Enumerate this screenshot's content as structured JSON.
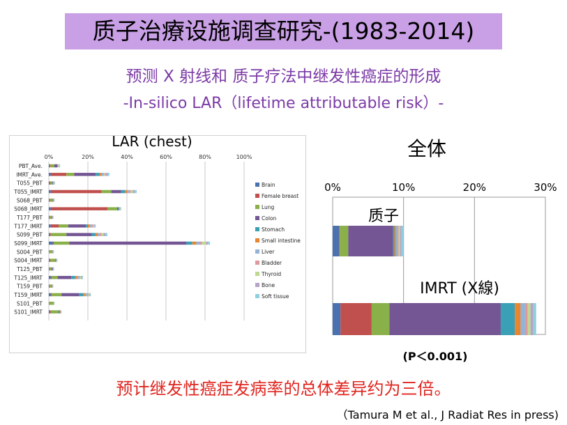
{
  "title": "质子治療设施调查研究-(1983-2014)",
  "subtitle1": "预测 X 射线和 质子疗法中继发性癌症的形成",
  "subtitle2": "-In-silico LAR（lifetime attributable risk）-",
  "conclusion": "预计继发性癌症发病率的总体差异约为三倍。",
  "citation": "（Tamura M et al., J Radiat Res in press)",
  "colors": {
    "Brain": "#4a72b0",
    "Female breast": "#c0504d",
    "Lung": "#8ab04a",
    "Colon": "#735693",
    "Stomach": "#3aa0b5",
    "Small intestine": "#e8852e",
    "Liver": "#95b2d8",
    "Bladder": "#de9a9a",
    "Thyroid": "#bfd890",
    "Bone": "#b4a4c8",
    "Soft tissue": "#8ed0e0"
  },
  "chart_data": [
    {
      "type": "bar",
      "orientation": "horizontal",
      "stacked": true,
      "title": "LAR (chest)",
      "xlim": [
        0,
        100
      ],
      "x_ticks": [
        "0%",
        "20%",
        "40%",
        "60%",
        "80%",
        "100%"
      ],
      "categories": [
        "PBT_Ave.",
        "IMRT_Ave.",
        "T055_PBT",
        "T055_IMRT",
        "S068_PBT",
        "S068_IMRT",
        "T177_PBT",
        "T177_IMRT",
        "S099_PBT",
        "S099_IMRT",
        "S004_PBT",
        "S004_IMRT",
        "T125_PBT",
        "T125_IMRT",
        "T159_PBT",
        "T159_IMRT",
        "S101_PBT",
        "S101_IMRT"
      ],
      "series": [
        {
          "name": "Brain",
          "values": [
            0.3,
            1,
            0.2,
            1,
            0.2,
            1,
            0.2,
            1,
            0.5,
            2,
            0.1,
            0.3,
            0.3,
            1,
            0.2,
            1,
            0.1,
            0.5
          ]
        },
        {
          "name": "Female breast",
          "values": [
            0.5,
            8,
            0.5,
            26,
            0.3,
            29,
            0.2,
            4,
            0.5,
            0.5,
            0.1,
            0.5,
            0.2,
            0.5,
            0.2,
            0.5,
            0.1,
            0.5
          ]
        },
        {
          "name": "Lung",
          "values": [
            2,
            4,
            1,
            5,
            1.5,
            5,
            1,
            5,
            8,
            8,
            1.5,
            2.5,
            1,
            3,
            1,
            5,
            2,
            4
          ]
        },
        {
          "name": "Colon",
          "values": [
            1.5,
            11,
            0.3,
            5,
            0.2,
            0.5,
            0.3,
            9,
            13,
            60,
            0.2,
            0.3,
            0.5,
            7,
            0.2,
            9,
            0.1,
            0.2
          ]
        },
        {
          "name": "Stomach",
          "values": [
            0.2,
            2,
            0.2,
            2,
            0.2,
            0.5,
            0.1,
            1,
            2,
            3,
            0.1,
            0.2,
            0.1,
            2,
            0.1,
            2,
            0.1,
            0.5
          ]
        },
        {
          "name": "Small intestine",
          "values": [
            0.1,
            1,
            0.1,
            1,
            0.1,
            0.2,
            0.1,
            1,
            1,
            2,
            0.1,
            0.1,
            0.1,
            1,
            0.1,
            1,
            0.1,
            0.2
          ]
        },
        {
          "name": "Liver",
          "values": [
            0.2,
            1,
            0.2,
            1,
            0.1,
            0.2,
            0.1,
            1,
            1,
            2,
            0.1,
            0.1,
            0.1,
            1,
            0.1,
            1,
            0.1,
            0.2
          ]
        },
        {
          "name": "Bladder",
          "values": [
            0.1,
            0.5,
            0.1,
            1,
            0.1,
            0.1,
            0.1,
            0.5,
            1,
            1,
            0.1,
            0.1,
            0.1,
            0.5,
            0.1,
            0.5,
            0.1,
            0.1
          ]
        },
        {
          "name": "Thyroid",
          "values": [
            0.5,
            0.5,
            0.2,
            1,
            0.1,
            0.2,
            0.1,
            0.5,
            1,
            2,
            0.1,
            0.1,
            0.1,
            0.5,
            0.1,
            0.5,
            0.1,
            0.2
          ]
        },
        {
          "name": "Bone",
          "values": [
            0.2,
            1,
            0.2,
            1,
            0.1,
            0.2,
            0.1,
            0.5,
            1,
            1,
            0.1,
            0.1,
            0.1,
            0.5,
            0.1,
            0.5,
            0.1,
            0.1
          ]
        },
        {
          "name": "Soft tissue",
          "values": [
            0.2,
            1,
            0.2,
            1,
            0.1,
            0.2,
            0.1,
            0.5,
            1,
            1,
            0.1,
            0.1,
            0.1,
            0.5,
            0.1,
            0.5,
            0.1,
            0.1
          ]
        }
      ]
    },
    {
      "type": "bar",
      "orientation": "horizontal",
      "stacked": true,
      "title": "全体",
      "xlim": [
        0,
        30
      ],
      "x_ticks": [
        "0%",
        "10%",
        "20%",
        "30%"
      ],
      "categories": [
        "质子",
        "IMRT (X線)"
      ],
      "series": [
        {
          "name": "Brain",
          "values": [
            0.9,
            1.1
          ]
        },
        {
          "name": "Female breast",
          "values": [
            0.1,
            4.4
          ]
        },
        {
          "name": "Lung",
          "values": [
            1.2,
            2.5
          ]
        },
        {
          "name": "Colon",
          "values": [
            6.3,
            15.7
          ]
        },
        {
          "name": "Stomach",
          "values": [
            0.2,
            2.0
          ]
        },
        {
          "name": "Small intestine",
          "values": [
            0.2,
            0.8
          ]
        },
        {
          "name": "Liver",
          "values": [
            0.3,
            0.7
          ]
        },
        {
          "name": "Bladder",
          "values": [
            0.1,
            0.3
          ]
        },
        {
          "name": "Thyroid",
          "values": [
            0.2,
            0.4
          ]
        },
        {
          "name": "Bone",
          "values": [
            0.2,
            0.4
          ]
        },
        {
          "name": "Soft tissue",
          "values": [
            0.3,
            0.4
          ]
        }
      ],
      "annotation": "(P＜0.001)"
    }
  ]
}
